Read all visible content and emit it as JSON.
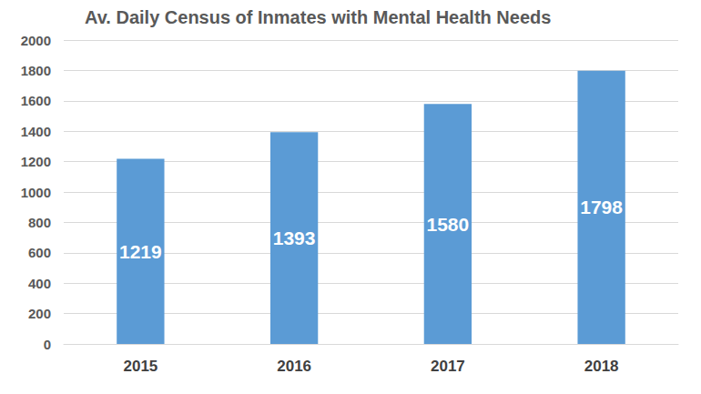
{
  "chart_data": {
    "type": "bar",
    "title": "Av. Daily Census of Inmates with Mental Health Needs",
    "categories": [
      "2015",
      "2016",
      "2017",
      "2018"
    ],
    "values": [
      1219,
      1393,
      1580,
      1798
    ],
    "color": "#5b9bd5",
    "ylim": [
      0,
      2000
    ],
    "yticks": [
      0,
      200,
      400,
      600,
      800,
      1000,
      1200,
      1400,
      1600,
      1800,
      2000
    ],
    "grid": true,
    "data_labels": true
  }
}
